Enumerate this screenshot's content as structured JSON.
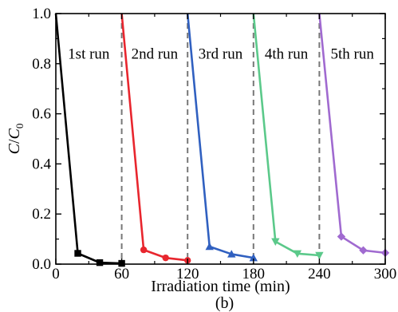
{
  "chart_data": {
    "type": "line",
    "title": "",
    "caption": "(b)",
    "xlabel": "Irradiation time (min)",
    "ylabel_parts": {
      "main": "C",
      "sep": "/",
      "sub_main": "C",
      "sub": "0"
    },
    "xlim": [
      0,
      300
    ],
    "ylim": [
      0.0,
      1.0
    ],
    "x_ticks": [
      0,
      60,
      120,
      180,
      240,
      300
    ],
    "x_tick_labels": [
      "0",
      "60",
      "120",
      "180",
      "240",
      "300"
    ],
    "y_ticks": [
      0.0,
      0.2,
      0.4,
      0.6,
      0.8,
      1.0
    ],
    "y_tick_labels": [
      "0.0",
      "0.2",
      "0.4",
      "0.6",
      "0.8",
      "1.0"
    ],
    "grid": false,
    "run_boundaries": [
      60,
      120,
      180,
      240
    ],
    "series": [
      {
        "name": "1st run",
        "color": "#000000",
        "marker": "square",
        "points": [
          [
            0,
            1.0
          ],
          [
            20,
            0.043
          ],
          [
            40,
            0.006
          ],
          [
            60,
            0.003
          ]
        ]
      },
      {
        "name": "2nd run",
        "color": "#e8262e",
        "marker": "circle",
        "points": [
          [
            60,
            1.0
          ],
          [
            80,
            0.057
          ],
          [
            100,
            0.025
          ],
          [
            120,
            0.015
          ]
        ]
      },
      {
        "name": "3rd run",
        "color": "#3060c0",
        "marker": "triangle-up",
        "points": [
          [
            120,
            1.0
          ],
          [
            140,
            0.07
          ],
          [
            160,
            0.04
          ],
          [
            180,
            0.025
          ]
        ]
      },
      {
        "name": "4th run",
        "color": "#5bc98a",
        "marker": "triangle-down",
        "points": [
          [
            180,
            1.0
          ],
          [
            200,
            0.09
          ],
          [
            220,
            0.042
          ],
          [
            240,
            0.035
          ]
        ]
      },
      {
        "name": "5th run",
        "color": "#a06ad0",
        "marker": "diamond",
        "points": [
          [
            240,
            1.0
          ],
          [
            260,
            0.11
          ],
          [
            280,
            0.055
          ],
          [
            300,
            0.045
          ]
        ]
      }
    ],
    "run_labels": [
      {
        "text": "1st run",
        "x": 30,
        "y": 0.82
      },
      {
        "text": "2nd run",
        "x": 90,
        "y": 0.82
      },
      {
        "text": "3rd run",
        "x": 150,
        "y": 0.82
      },
      {
        "text": "4th run",
        "x": 210,
        "y": 0.82
      },
      {
        "text": "5th run",
        "x": 270,
        "y": 0.82
      }
    ]
  }
}
